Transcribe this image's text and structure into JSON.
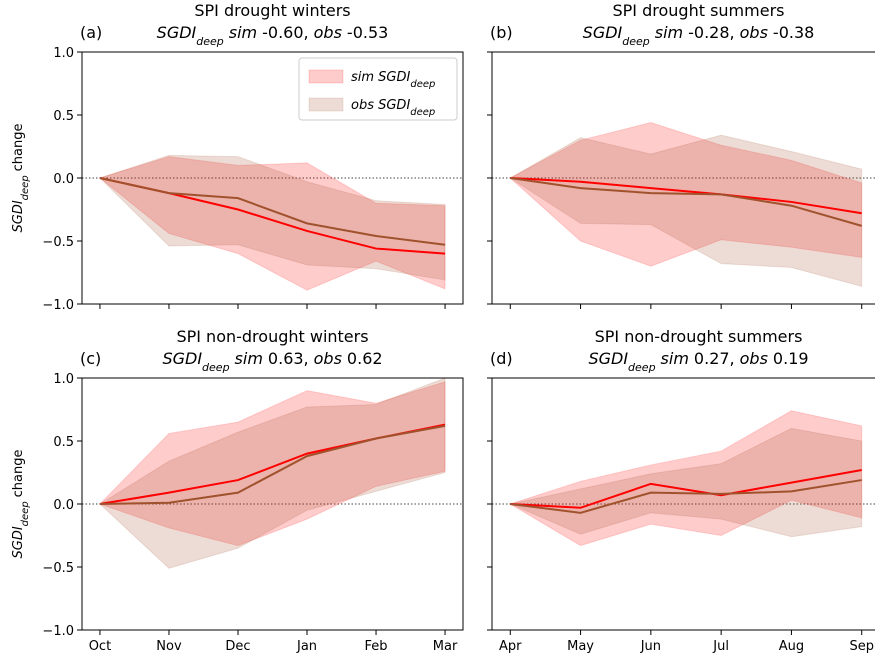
{
  "chart_data": [
    {
      "type": "line",
      "panel": "(a)",
      "title": "SPI drought winters",
      "subtitle": {
        "var": "SGDI",
        "sub": "deep",
        "sim_label": "sim",
        "sim": "-0.60",
        "sep": ",",
        "obs_label": "obs",
        "obs": "-0.53"
      },
      "ylabel": {
        "var": "SGDI",
        "sub": "deep",
        "text": "change"
      },
      "categories": [
        null,
        null,
        null,
        null,
        null,
        null
      ],
      "ylim": [
        -1,
        1
      ],
      "yticks": [
        {
          "value": -1,
          "label": "−1.0"
        },
        {
          "value": -0.5,
          "label": "−0.5"
        },
        {
          "value": 0,
          "label": "0.0"
        },
        {
          "value": 0.5,
          "label": "0.5"
        },
        {
          "value": 1,
          "label": "1.0"
        }
      ],
      "hline": 0,
      "legend": "upper right",
      "series": [
        {
          "name": "sim SGDI",
          "name_sub": "deep",
          "color": "#ff0000",
          "values": [
            0,
            -0.12,
            -0.25,
            -0.42,
            -0.56,
            -0.6
          ],
          "upper": [
            0,
            0.17,
            0.1,
            0.12,
            -0.2,
            -0.22
          ],
          "lower": [
            0,
            -0.44,
            -0.6,
            -0.89,
            -0.66,
            -0.88
          ]
        },
        {
          "name": "obs SGDI",
          "name_sub": "deep",
          "color": "#a0522d",
          "values": [
            0,
            -0.12,
            -0.16,
            -0.36,
            -0.46,
            -0.53
          ],
          "upper": [
            0,
            0.18,
            0.17,
            -0.03,
            -0.18,
            -0.21
          ],
          "lower": [
            0,
            -0.54,
            -0.53,
            -0.69,
            -0.72,
            -0.81
          ]
        }
      ]
    },
    {
      "type": "line",
      "panel": "(b)",
      "title": "SPI drought summers",
      "subtitle": {
        "var": "SGDI",
        "sub": "deep",
        "sim_label": "sim",
        "sim": "-0.28",
        "sep": ",",
        "obs_label": "obs",
        "obs": "-0.38"
      },
      "categories": [
        null,
        null,
        null,
        null,
        null,
        null
      ],
      "ylim": [
        -1,
        1
      ],
      "yticks": [
        -1,
        -0.5,
        0,
        0.5,
        1
      ],
      "hline": 0,
      "series": [
        {
          "color": "#ff0000",
          "values": [
            0,
            -0.03,
            -0.08,
            -0.13,
            -0.19,
            -0.28
          ],
          "upper": [
            0,
            0.3,
            0.44,
            0.26,
            0.14,
            -0.04
          ],
          "lower": [
            0,
            -0.5,
            -0.7,
            -0.49,
            -0.55,
            -0.63
          ]
        },
        {
          "color": "#a0522d",
          "values": [
            0,
            -0.08,
            -0.12,
            -0.13,
            -0.22,
            -0.38
          ],
          "upper": [
            0,
            0.32,
            0.19,
            0.34,
            0.21,
            0.07
          ],
          "lower": [
            0,
            -0.36,
            -0.37,
            -0.68,
            -0.71,
            -0.86
          ]
        }
      ]
    },
    {
      "type": "line",
      "panel": "(c)",
      "title": "SPI non-drought winters",
      "subtitle": {
        "var": "SGDI",
        "sub": "deep",
        "sim_label": "sim",
        "sim": "0.63",
        "sep": ",",
        "obs_label": "obs",
        "obs": "0.62"
      },
      "ylabel": {
        "var": "SGDI",
        "sub": "deep",
        "text": "change"
      },
      "categories": [
        "Oct",
        "Nov",
        "Dec",
        "Jan",
        "Feb",
        "Mar"
      ],
      "ylim": [
        -1,
        1
      ],
      "yticks": [
        {
          "value": -1,
          "label": "−1.0"
        },
        {
          "value": -0.5,
          "label": "−0.5"
        },
        {
          "value": 0,
          "label": "0.0"
        },
        {
          "value": 0.5,
          "label": "0.5"
        },
        {
          "value": 1,
          "label": "1.0"
        }
      ],
      "hline": 0,
      "series": [
        {
          "color": "#ff0000",
          "values": [
            0,
            0.09,
            0.19,
            0.4,
            0.52,
            0.63
          ],
          "upper": [
            0,
            0.56,
            0.65,
            0.9,
            0.8,
            0.97
          ],
          "lower": [
            0,
            -0.19,
            -0.33,
            -0.12,
            0.14,
            0.26
          ]
        },
        {
          "color": "#a0522d",
          "values": [
            0,
            0.01,
            0.09,
            0.38,
            0.52,
            0.62
          ],
          "upper": [
            0,
            0.34,
            0.57,
            0.77,
            0.79,
            1.0
          ],
          "lower": [
            0,
            -0.51,
            -0.35,
            -0.05,
            0.1,
            0.25
          ]
        }
      ]
    },
    {
      "type": "line",
      "panel": "(d)",
      "title": "SPI non-drought summers",
      "subtitle": {
        "var": "SGDI",
        "sub": "deep",
        "sim_label": "sim",
        "sim": "0.27",
        "sep": ",",
        "obs_label": "obs",
        "obs": "0.19"
      },
      "categories": [
        "Apr",
        "May",
        "Jun",
        "Jul",
        "Aug",
        "Sep"
      ],
      "ylim": [
        -1,
        1
      ],
      "yticks": [
        -1,
        -0.5,
        0,
        0.5,
        1
      ],
      "hline": 0,
      "series": [
        {
          "color": "#ff0000",
          "values": [
            0,
            -0.03,
            0.16,
            0.07,
            0.17,
            0.27
          ],
          "upper": [
            0,
            0.18,
            0.31,
            0.42,
            0.74,
            0.62
          ],
          "lower": [
            0,
            -0.33,
            -0.16,
            -0.25,
            0.03,
            -0.11
          ]
        },
        {
          "color": "#a0522d",
          "values": [
            0,
            -0.07,
            0.09,
            0.08,
            0.1,
            0.19
          ],
          "upper": [
            0,
            0.12,
            0.24,
            0.32,
            0.6,
            0.5
          ],
          "lower": [
            0,
            -0.24,
            -0.07,
            -0.12,
            -0.26,
            -0.18
          ]
        }
      ]
    }
  ]
}
